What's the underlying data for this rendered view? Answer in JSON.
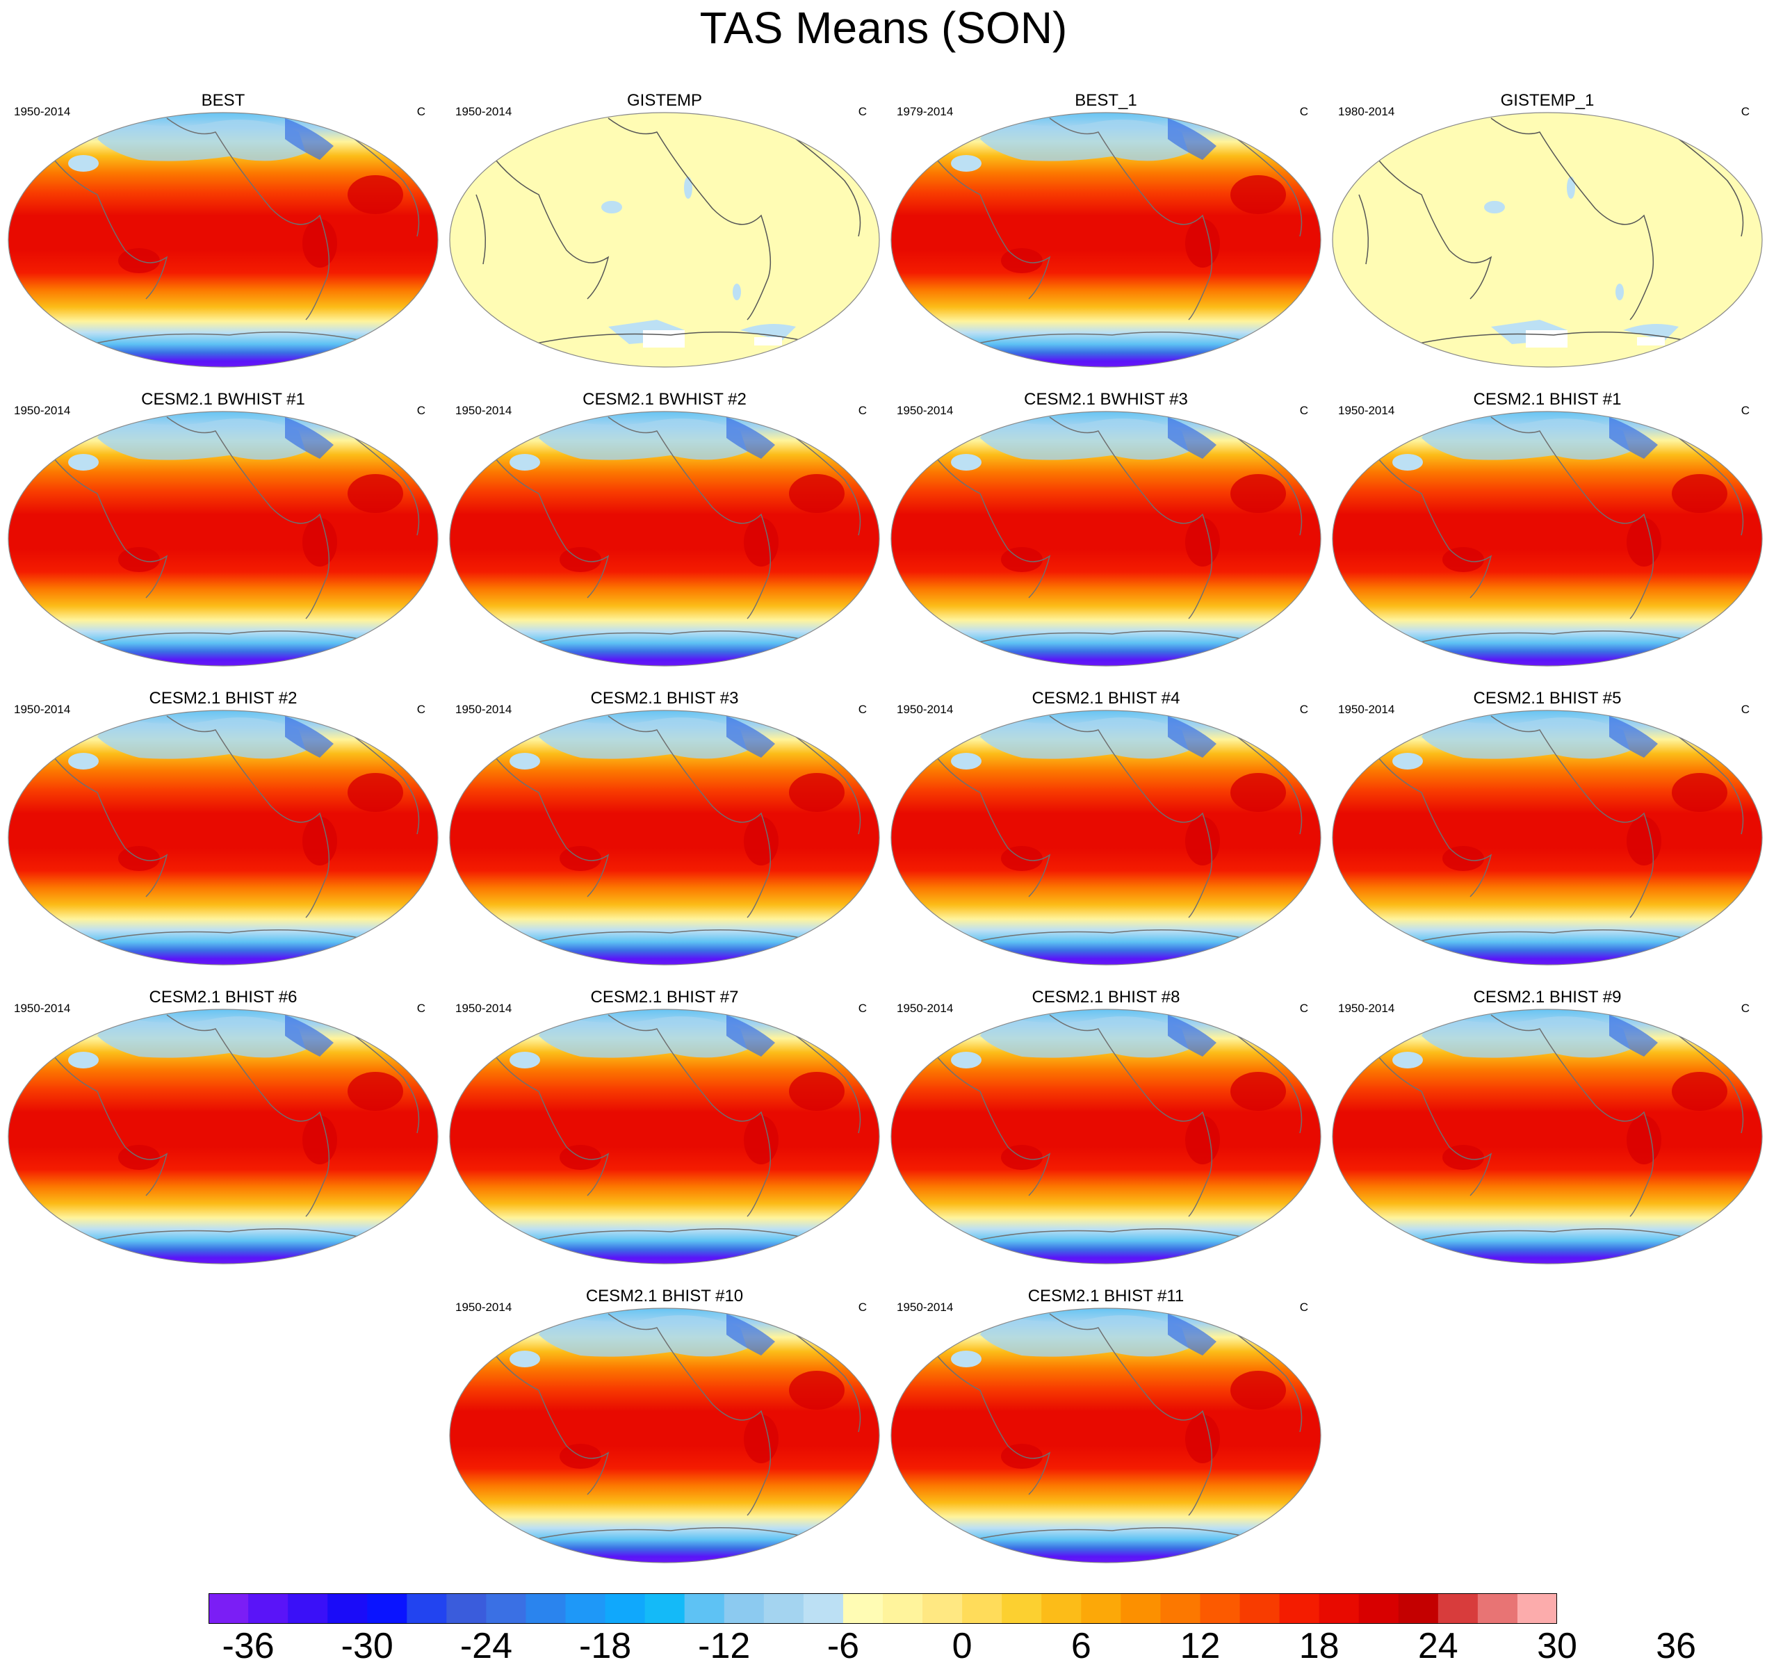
{
  "title": "TAS Means (SON)",
  "panels": [
    {
      "title": "BEST",
      "period": "1950-2014",
      "unit": "C",
      "field": "full"
    },
    {
      "title": "GISTEMP",
      "period": "1950-2014",
      "unit": "C",
      "field": "anomaly"
    },
    {
      "title": "BEST_1",
      "period": "1979-2014",
      "unit": "C",
      "field": "full"
    },
    {
      "title": "GISTEMP_1",
      "period": "1980-2014",
      "unit": "C",
      "field": "anomaly"
    },
    {
      "title": "CESM2.1 BWHIST #1",
      "period": "1950-2014",
      "unit": "C",
      "field": "full"
    },
    {
      "title": "CESM2.1 BWHIST #2",
      "period": "1950-2014",
      "unit": "C",
      "field": "full"
    },
    {
      "title": "CESM2.1 BWHIST #3",
      "period": "1950-2014",
      "unit": "C",
      "field": "full"
    },
    {
      "title": "CESM2.1 BHIST #1",
      "period": "1950-2014",
      "unit": "C",
      "field": "full"
    },
    {
      "title": "CESM2.1 BHIST #2",
      "period": "1950-2014",
      "unit": "C",
      "field": "full"
    },
    {
      "title": "CESM2.1 BHIST #3",
      "period": "1950-2014",
      "unit": "C",
      "field": "full"
    },
    {
      "title": "CESM2.1 BHIST #4",
      "period": "1950-2014",
      "unit": "C",
      "field": "full"
    },
    {
      "title": "CESM2.1 BHIST #5",
      "period": "1950-2014",
      "unit": "C",
      "field": "full"
    },
    {
      "title": "CESM2.1 BHIST #6",
      "period": "1950-2014",
      "unit": "C",
      "field": "full"
    },
    {
      "title": "CESM2.1 BHIST #7",
      "period": "1950-2014",
      "unit": "C",
      "field": "full"
    },
    {
      "title": "CESM2.1 BHIST #8",
      "period": "1950-2014",
      "unit": "C",
      "field": "full"
    },
    {
      "title": "CESM2.1 BHIST #9",
      "period": "1950-2014",
      "unit": "C",
      "field": "full"
    },
    {
      "title": "CESM2.1 BHIST #10",
      "period": "1950-2014",
      "unit": "C",
      "field": "full"
    },
    {
      "title": "CESM2.1 BHIST #11",
      "period": "1950-2014",
      "unit": "C",
      "field": "full"
    }
  ],
  "colorbar": {
    "labels": [
      "-36",
      "-30",
      "-24",
      "-18",
      "-12",
      "-6",
      "0",
      "6",
      "12",
      "18",
      "24",
      "30",
      "36"
    ],
    "colors": [
      "#7b1ef5",
      "#5a14f8",
      "#3a10f8",
      "#1a0cf8",
      "#0a14ff",
      "#2244f0",
      "#3a5cdc",
      "#3a70e4",
      "#2a84ee",
      "#1e98f8",
      "#10a8fc",
      "#14baf8",
      "#5ec2f4",
      "#8ccaf0",
      "#a4d4f0",
      "#bce0f4",
      "#fffcb4",
      "#fff49c",
      "#ffe882",
      "#ffdc5a",
      "#fcd030",
      "#fcbc18",
      "#fca808",
      "#fc9000",
      "#fc7800",
      "#fc5a00",
      "#f83c00",
      "#f41c00",
      "#e80a00",
      "#d80000",
      "#c40000",
      "#d83c3c",
      "#e87474",
      "#fcacac"
    ]
  }
}
